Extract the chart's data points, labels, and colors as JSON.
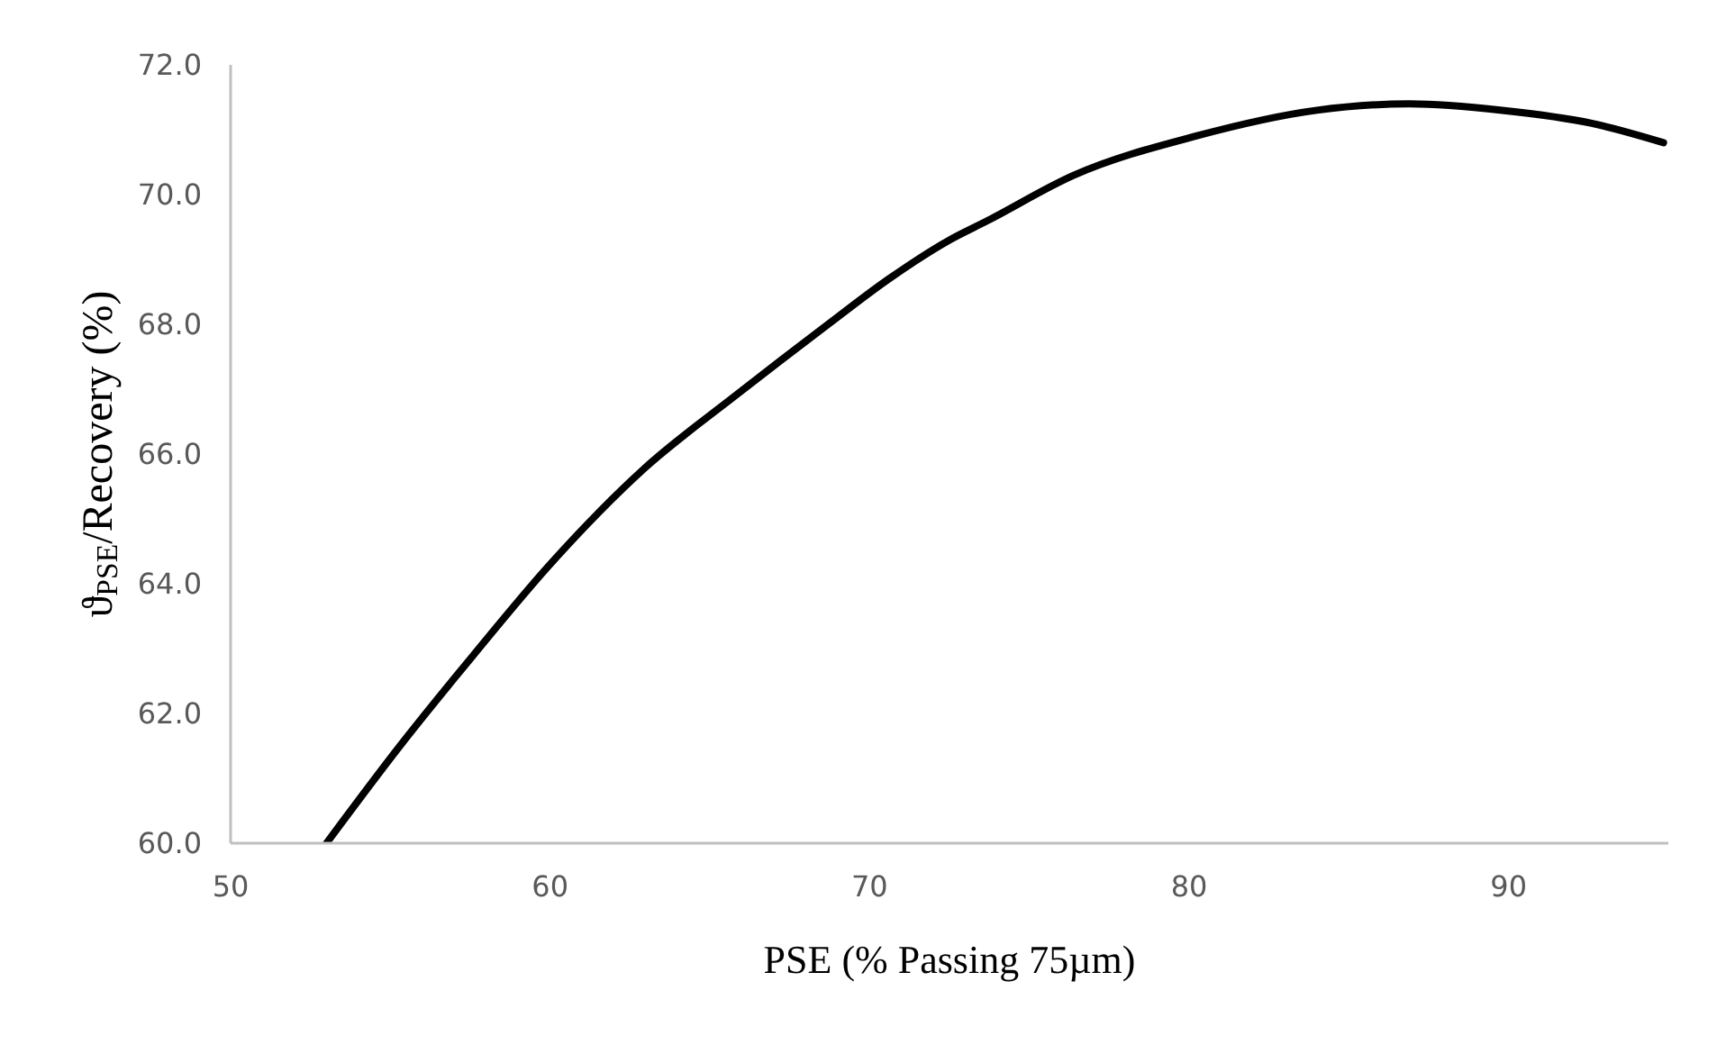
{
  "chart_data": {
    "type": "line",
    "xlabel": "PSE (% Passing 75µm)",
    "ylabel": "ϑ$_{PSE}$/Recovery (%)",
    "x": [
      53,
      55.3,
      57.6,
      60,
      63,
      65.8,
      68.7,
      70.6,
      72.5,
      73.7,
      76.4,
      80.2,
      84,
      86.9,
      89.8,
      92.6,
      94.85
    ],
    "series": [
      {
        "color": "#000000",
        "values": [
          60,
          61.5,
          62.9,
          64.3,
          65.8,
          66.9,
          68.0,
          68.7,
          69.3,
          69.6,
          70.3,
          70.9,
          71.3,
          71.4,
          71.3,
          71.1,
          70.8
        ]
      }
    ],
    "xlim": [
      50,
      95
    ],
    "xticks": [
      50,
      60,
      70,
      80,
      90
    ],
    "ylim": [
      60,
      72
    ],
    "yticks": [
      {
        "value": 60,
        "label": "60.0"
      },
      {
        "value": 62,
        "label": "62.0"
      },
      {
        "value": 64,
        "label": "64.0"
      },
      {
        "value": 66,
        "label": "66.0"
      },
      {
        "value": 68,
        "label": "68.0"
      },
      {
        "value": 70,
        "label": "70.0"
      },
      {
        "value": 72,
        "label": "72.0"
      }
    ],
    "grid": false,
    "legend": false,
    "marker": "none",
    "line_style": "solid"
  }
}
